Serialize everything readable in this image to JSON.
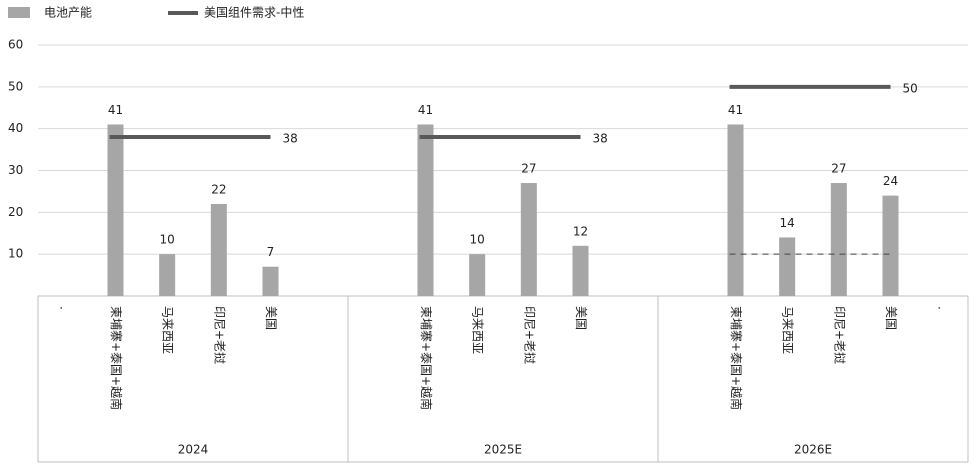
{
  "chart_data": {
    "type": "bar",
    "categories": [
      ".",
      "柬埔寨+泰国+越南",
      "马来西亚",
      "印尼+老挝",
      "美国",
      null,
      null,
      "柬埔寨+泰国+越南",
      "马来西亚",
      "印尼+老挝",
      "美国",
      null,
      null,
      "柬埔寨+泰国+越南",
      "马来西亚",
      "印尼+老挝",
      "美国",
      "."
    ],
    "groups": [
      "2024",
      "2025E",
      "2026E"
    ],
    "series": [
      {
        "name": "电池产能",
        "type": "bar",
        "color": "#a6a6a6",
        "values": [
          null,
          41,
          10,
          22,
          7,
          null,
          null,
          41,
          10,
          27,
          12,
          null,
          null,
          41,
          14,
          27,
          24,
          null
        ]
      },
      {
        "name": "美国组件需求-中性",
        "type": "line",
        "color": "#595959",
        "values": [
          null,
          38,
          38,
          38,
          38,
          null,
          null,
          38,
          38,
          38,
          38,
          null,
          null,
          50,
          50,
          50,
          50,
          null
        ]
      },
      {
        "type": "line",
        "dashed": true,
        "color": "#444444",
        "values": [
          null,
          null,
          null,
          null,
          null,
          null,
          null,
          null,
          null,
          null,
          null,
          null,
          null,
          10,
          10,
          10,
          10,
          null
        ]
      }
    ],
    "ylim": [
      0,
      60
    ],
    "yticks": [
      10,
      20,
      30,
      40,
      50,
      60
    ],
    "grid": true
  }
}
